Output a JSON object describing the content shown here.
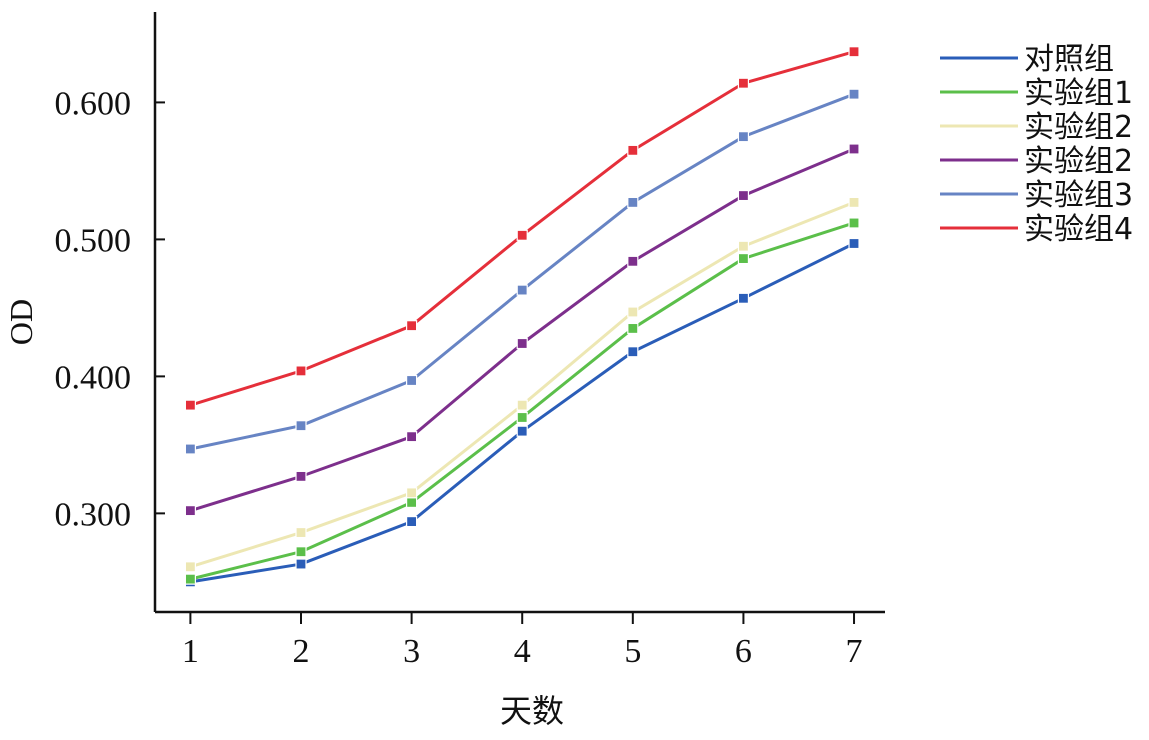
{
  "chart_data": {
    "type": "line",
    "x": [
      1,
      2,
      3,
      4,
      5,
      6,
      7
    ],
    "xlabel": "天数",
    "ylabel": "OD",
    "xlim": [
      0.68,
      7.28
    ],
    "ylim": [
      0.228,
      0.666
    ],
    "yticks": [
      0.3,
      0.4,
      0.5,
      0.6
    ],
    "ytick_labels": [
      "0.300",
      "0.400",
      "0.500",
      "0.600"
    ],
    "xtick_labels": [
      "1",
      "2",
      "3",
      "4",
      "5",
      "6",
      "7"
    ],
    "legend_position": "top-right",
    "grid": false,
    "series": [
      {
        "name": "对照组",
        "color": "#2a5db8",
        "values": [
          0.25,
          0.263,
          0.294,
          0.36,
          0.418,
          0.457,
          0.497
        ]
      },
      {
        "name": "实验组1",
        "color": "#5bbf4a",
        "values": [
          0.252,
          0.272,
          0.308,
          0.37,
          0.435,
          0.486,
          0.512
        ]
      },
      {
        "name": "实验组2",
        "color": "#ede7b3",
        "values": [
          0.261,
          0.286,
          0.315,
          0.379,
          0.447,
          0.495,
          0.527
        ]
      },
      {
        "name": "实验组2",
        "color": "#7d2f8c",
        "values": [
          0.302,
          0.327,
          0.356,
          0.424,
          0.484,
          0.532,
          0.566
        ]
      },
      {
        "name": "实验组3",
        "color": "#6784c4",
        "values": [
          0.347,
          0.364,
          0.397,
          0.463,
          0.527,
          0.575,
          0.606
        ]
      },
      {
        "name": "实验组4",
        "color": "#e52f3a",
        "values": [
          0.379,
          0.404,
          0.437,
          0.503,
          0.565,
          0.614,
          0.637
        ]
      }
    ]
  }
}
